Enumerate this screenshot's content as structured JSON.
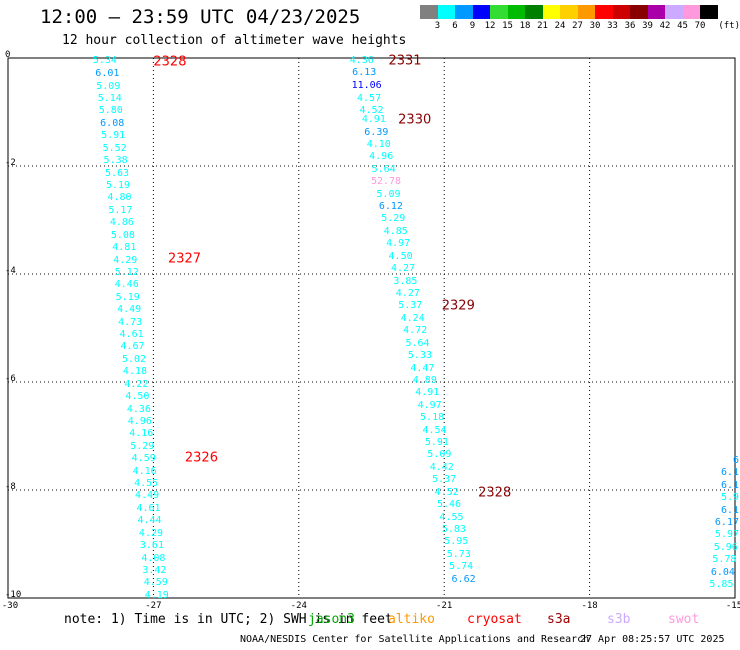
{
  "header": {
    "title": "12:00 – 23:59 UTC 04/23/2025",
    "subtitle": "12 hour collection of altimeter wave heights"
  },
  "colorbar": {
    "unit": "(ft)",
    "ticks": [
      "3",
      "6",
      "9",
      "12",
      "15",
      "18",
      "21",
      "24",
      "27",
      "30",
      "33",
      "36",
      "39",
      "42",
      "45",
      "70"
    ],
    "colors": [
      "#808080",
      "#00ffff",
      "#0099ff",
      "#0000ff",
      "#33dd33",
      "#00bb00",
      "#008000",
      "#ffff00",
      "#ffd000",
      "#ff9900",
      "#ff0000",
      "#cc0000",
      "#880000",
      "#aa00aa",
      "#ccaaff",
      "#ff99dd",
      "#000000"
    ]
  },
  "footer": {
    "note": "note:  1) Time is in UTC; 2) SWH is in feet",
    "satellites": [
      {
        "name": "jason3",
        "color": "#00aa00"
      },
      {
        "name": "altiko",
        "color": "#ff9900"
      },
      {
        "name": "cryosat",
        "color": "#ff0000"
      },
      {
        "name": "s3a",
        "color": "#990000"
      },
      {
        "name": "s3b",
        "color": "#ccaaff"
      },
      {
        "name": "swot",
        "color": "#ff99dd"
      }
    ],
    "credit": "NOAA/NESDIS Center for Satellite Applications and Research",
    "date": "27 Apr 08:25:57 UTC 2025"
  },
  "chart_data": {
    "type": "scatter",
    "xlim": [
      -30,
      -15
    ],
    "ylim": [
      -10,
      0
    ],
    "xticks": [
      "-30",
      "-27",
      "-24",
      "-21",
      "-18",
      "-15"
    ],
    "yticks": [
      "0",
      "-2",
      "-4",
      "-6",
      "-8",
      "-10"
    ],
    "grid": true,
    "tracks": [
      {
        "id": "2328",
        "color": "#ff0000",
        "label_pos": [
          -27.0,
          -0.08
        ],
        "points": [
          {
            "x": -28.0,
            "y": -0.05,
            "v": "5.34"
          },
          {
            "x": -27.95,
            "y": -0.3,
            "v": "6.01"
          },
          {
            "x": -27.93,
            "y": -0.53,
            "v": "5.09"
          },
          {
            "x": -27.9,
            "y": -0.76,
            "v": "5.14"
          },
          {
            "x": -27.88,
            "y": -0.99,
            "v": "5.80"
          },
          {
            "x": -27.85,
            "y": -1.22,
            "v": "6.08"
          },
          {
            "x": -27.83,
            "y": -1.45,
            "v": "5.91"
          },
          {
            "x": -27.8,
            "y": -1.68,
            "v": "5.52"
          },
          {
            "x": -27.78,
            "y": -1.91,
            "v": "5.38"
          },
          {
            "x": -27.75,
            "y": -2.14,
            "v": "5.63"
          },
          {
            "x": -27.73,
            "y": -2.37,
            "v": "5.19"
          },
          {
            "x": -27.7,
            "y": -2.6,
            "v": "4.80"
          },
          {
            "x": -27.68,
            "y": -2.83,
            "v": "5.17"
          },
          {
            "x": -27.65,
            "y": -3.06,
            "v": "4.86"
          },
          {
            "x": -27.63,
            "y": -3.29,
            "v": "5.08"
          },
          {
            "x": -27.6,
            "y": -3.52,
            "v": "4.81"
          },
          {
            "x": -27.58,
            "y": -3.75,
            "v": "4.29"
          },
          {
            "x": -27.55,
            "y": -3.98,
            "v": "5.12"
          }
        ]
      },
      {
        "id": "2327",
        "color": "#ff0000",
        "label_pos": [
          -26.7,
          -3.73
        ],
        "points": [
          {
            "x": -27.55,
            "y": -4.21,
            "v": "4.46"
          },
          {
            "x": -27.53,
            "y": -4.44,
            "v": "5.19"
          },
          {
            "x": -27.5,
            "y": -4.67,
            "v": "4.49"
          },
          {
            "x": -27.48,
            "y": -4.9,
            "v": "4.73"
          },
          {
            "x": -27.45,
            "y": -5.13,
            "v": "4.61"
          },
          {
            "x": -27.43,
            "y": -5.36,
            "v": "4.67"
          },
          {
            "x": -27.4,
            "y": -5.59,
            "v": "5.02"
          },
          {
            "x": -27.38,
            "y": -5.82,
            "v": "4.18"
          },
          {
            "x": -27.35,
            "y": -6.05,
            "v": "4.22"
          },
          {
            "x": -27.33,
            "y": -6.28,
            "v": "4.50"
          },
          {
            "x": -27.3,
            "y": -6.51,
            "v": "4.36"
          },
          {
            "x": -27.28,
            "y": -6.74,
            "v": "4.96"
          },
          {
            "x": -27.25,
            "y": -6.97,
            "v": "4.16"
          },
          {
            "x": -27.23,
            "y": -7.2,
            "v": "5.29"
          },
          {
            "x": -27.2,
            "y": -7.43,
            "v": "4.59"
          }
        ]
      },
      {
        "id": "2326",
        "color": "#ff0000",
        "label_pos": [
          -26.35,
          -7.41
        ],
        "points": [
          {
            "x": -27.18,
            "y": -7.66,
            "v": "4.16"
          },
          {
            "x": -27.15,
            "y": -7.89,
            "v": "4.55"
          },
          {
            "x": -27.13,
            "y": -8.12,
            "v": "4.49"
          },
          {
            "x": -27.1,
            "y": -8.35,
            "v": "4.61"
          },
          {
            "x": -27.08,
            "y": -8.58,
            "v": "4.44"
          },
          {
            "x": -27.05,
            "y": -8.81,
            "v": "4.29"
          },
          {
            "x": -27.03,
            "y": -9.04,
            "v": "3.61"
          },
          {
            "x": -27.0,
            "y": -9.27,
            "v": "4.08"
          },
          {
            "x": -26.98,
            "y": -9.5,
            "v": "3.42"
          },
          {
            "x": -26.95,
            "y": -9.73,
            "v": "4.59"
          },
          {
            "x": -26.93,
            "y": -9.96,
            "v": "4.19"
          }
        ]
      },
      {
        "id": "2331",
        "color": "#880000",
        "label_pos": [
          -22.15,
          -0.05
        ],
        "points": [
          {
            "x": -22.7,
            "y": -0.05,
            "v": "4.36"
          },
          {
            "x": -22.65,
            "y": -0.28,
            "v": "6.13"
          },
          {
            "x": -22.6,
            "y": -0.52,
            "v": "11.06"
          },
          {
            "x": -22.55,
            "y": -0.76,
            "v": "4.57"
          },
          {
            "x": -22.5,
            "y": -0.99,
            "v": "4.52"
          },
          {
            "x": -22.45,
            "y": -1.15,
            "v": "4.91"
          }
        ]
      },
      {
        "id": "2330",
        "color": "#880000",
        "label_pos": [
          -21.95,
          -1.15
        ],
        "points": [
          {
            "x": -22.4,
            "y": -1.38,
            "v": "6.39"
          },
          {
            "x": -22.35,
            "y": -1.61,
            "v": "4.10"
          },
          {
            "x": -22.3,
            "y": -1.84,
            "v": "4.96"
          },
          {
            "x": -22.25,
            "y": -2.07,
            "v": "5.64"
          },
          {
            "x": -22.2,
            "y": -2.3,
            "v": "52.78"
          },
          {
            "x": -22.15,
            "y": -2.53,
            "v": "5.09"
          },
          {
            "x": -22.1,
            "y": -2.76,
            "v": "6.12"
          },
          {
            "x": -22.05,
            "y": -2.99,
            "v": "5.29"
          },
          {
            "x": -22.0,
            "y": -3.22,
            "v": "4.85"
          },
          {
            "x": -21.95,
            "y": -3.45,
            "v": "4.97"
          },
          {
            "x": -21.9,
            "y": -3.68,
            "v": "4.50"
          },
          {
            "x": -21.85,
            "y": -3.91,
            "v": "4.27"
          },
          {
            "x": -21.8,
            "y": -4.14,
            "v": "3.85"
          },
          {
            "x": -21.75,
            "y": -4.37,
            "v": "4.27"
          },
          {
            "x": -21.7,
            "y": -4.6,
            "v": "5.37"
          }
        ]
      },
      {
        "id": "2329",
        "color": "#880000",
        "label_pos": [
          -21.05,
          -4.6
        ],
        "points": [
          {
            "x": -21.65,
            "y": -4.83,
            "v": "4.24"
          },
          {
            "x": -21.6,
            "y": -5.06,
            "v": "4.72"
          },
          {
            "x": -21.55,
            "y": -5.29,
            "v": "5.64"
          },
          {
            "x": -21.5,
            "y": -5.52,
            "v": "5.33"
          },
          {
            "x": -21.45,
            "y": -5.75,
            "v": "4.47"
          },
          {
            "x": -21.4,
            "y": -5.98,
            "v": "4.89"
          },
          {
            "x": -21.35,
            "y": -6.21,
            "v": "4.91"
          },
          {
            "x": -21.3,
            "y": -6.44,
            "v": "4.97"
          },
          {
            "x": -21.25,
            "y": -6.67,
            "v": "5.18"
          },
          {
            "x": -21.2,
            "y": -6.9,
            "v": "4.54"
          },
          {
            "x": -21.15,
            "y": -7.13,
            "v": "5.91"
          },
          {
            "x": -21.1,
            "y": -7.36,
            "v": "5.09"
          },
          {
            "x": -21.05,
            "y": -7.59,
            "v": "4.42"
          },
          {
            "x": -21.0,
            "y": -7.82,
            "v": "5.37"
          },
          {
            "x": -20.95,
            "y": -8.05,
            "v": "4.52"
          }
        ]
      },
      {
        "id": "2328",
        "color": "#880000",
        "label_pos": [
          -20.3,
          -8.05
        ],
        "points": [
          {
            "x": -20.9,
            "y": -8.28,
            "v": "5.46"
          },
          {
            "x": -20.85,
            "y": -8.51,
            "v": "4.55"
          },
          {
            "x": -20.8,
            "y": -8.74,
            "v": "5.83"
          },
          {
            "x": -20.75,
            "y": -8.97,
            "v": "5.95"
          },
          {
            "x": -20.7,
            "y": -9.2,
            "v": "5.73"
          },
          {
            "x": -20.65,
            "y": -9.43,
            "v": "5.74"
          },
          {
            "x": -20.6,
            "y": -9.66,
            "v": "6.62"
          }
        ]
      },
      {
        "id": "",
        "color": "#880000",
        "label_pos": null,
        "points": [
          {
            "x": -15.02,
            "y": -7.46,
            "v": "6"
          },
          {
            "x": -15.05,
            "y": -7.69,
            "v": "6.1"
          },
          {
            "x": -15.08,
            "y": -7.92,
            "v": "6.1"
          },
          {
            "x": -15.11,
            "y": -8.15,
            "v": "5.9"
          },
          {
            "x": -15.14,
            "y": -8.38,
            "v": "6.1"
          },
          {
            "x": -15.17,
            "y": -8.61,
            "v": "6.17"
          },
          {
            "x": -15.2,
            "y": -8.84,
            "v": "5.97"
          },
          {
            "x": -15.23,
            "y": -9.07,
            "v": "5.96"
          },
          {
            "x": -15.26,
            "y": -9.3,
            "v": "5.78"
          },
          {
            "x": -15.29,
            "y": -9.53,
            "v": "6.04"
          },
          {
            "x": -15.32,
            "y": -9.76,
            "v": "5.85"
          }
        ]
      }
    ]
  }
}
